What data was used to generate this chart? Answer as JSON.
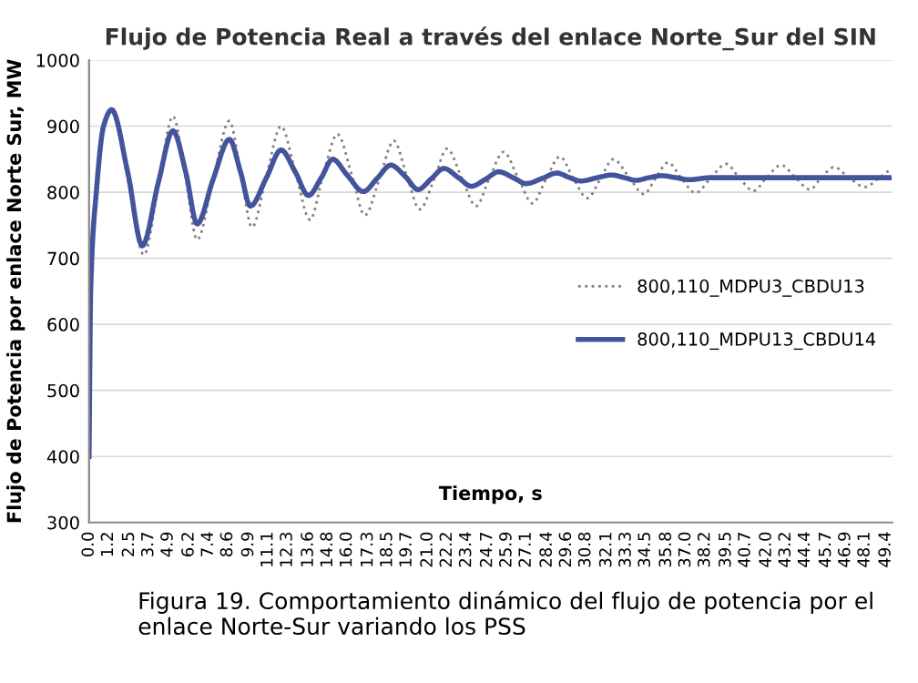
{
  "chart_data": {
    "type": "line",
    "title": "Flujo de Potencia Real a través del enlace Norte_Sur del SIN",
    "xlabel": "Tiempo, s",
    "ylabel": "Flujo de Potencia por enlace Norte Sur, MW",
    "annotations": [
      "Figura 19. Comportamiento dinámico del flujo de potencia por el enlace Norte-Sur variando los PSS"
    ],
    "series": [
      {
        "name": "800,110_MDPU3_CBDU13",
        "color": "#808080",
        "line_style": "dotted",
        "x": [
          0,
          0.1,
          0.45,
          0.9,
          1.4,
          2.4,
          3.4,
          4.3,
          5.2,
          6.0,
          6.7,
          7.7,
          8.7,
          9.4,
          10.1,
          11.0,
          11.9,
          12.8,
          13.7,
          14.5,
          15.4,
          16.3,
          17.1,
          18.0,
          18.9,
          19.7,
          20.5,
          21.4,
          22.2,
          23.1,
          24.0,
          24.8,
          25.7,
          26.6,
          27.5,
          28.3,
          29.2,
          30.0,
          30.9,
          31.7,
          32.5,
          33.5,
          34.4,
          35.1,
          35.9,
          36.7,
          37.6,
          38.5,
          39.5,
          40.3,
          41.2,
          42.0,
          42.9,
          43.8,
          44.7,
          45.4,
          46.2,
          47.1,
          48.1,
          49.0,
          49.6
        ],
        "values": [
          400,
          650,
          800,
          900,
          925,
          820,
          705,
          810,
          915,
          820,
          728,
          820,
          908,
          830,
          747,
          825,
          900,
          830,
          758,
          825,
          888,
          825,
          765,
          820,
          878,
          825,
          774,
          820,
          866,
          822,
          779,
          820,
          861,
          822,
          783,
          818,
          854,
          822,
          791,
          820,
          850,
          822,
          797,
          820,
          845,
          822,
          799,
          820,
          843,
          822,
          802,
          822,
          841,
          822,
          804,
          822,
          838,
          822,
          808,
          822,
          833
        ]
      },
      {
        "name": "800,110_MDPU13_CBDU14",
        "color": "#44549c",
        "line_style": "solid",
        "x": [
          0,
          0.1,
          0.45,
          0.9,
          1.4,
          2.4,
          3.3,
          4.3,
          5.2,
          6.0,
          6.7,
          7.7,
          8.7,
          9.4,
          10.0,
          11.0,
          11.9,
          12.8,
          13.6,
          14.4,
          15.1,
          16.0,
          17.0,
          17.9,
          18.7,
          19.6,
          20.4,
          21.2,
          22.0,
          22.9,
          23.7,
          24.6,
          25.4,
          26.3,
          27.1,
          28.1,
          29.0,
          29.8,
          30.5,
          31.5,
          32.4,
          33.2,
          33.9,
          34.7,
          35.5,
          36.4,
          37.2,
          38.5,
          40,
          42,
          44,
          46,
          48,
          49.6
        ],
        "values": [
          400,
          650,
          800,
          900,
          925,
          830,
          719,
          815,
          893,
          830,
          752,
          820,
          880,
          830,
          779,
          822,
          864,
          830,
          795,
          822,
          850,
          826,
          801,
          822,
          841,
          824,
          804,
          820,
          836,
          822,
          809,
          820,
          831,
          822,
          813,
          821,
          829,
          822,
          817,
          822,
          826,
          822,
          818,
          822,
          825,
          822,
          819,
          822,
          822,
          822,
          822,
          822,
          822,
          822
        ]
      }
    ],
    "xlim": [
      0,
      49.8
    ],
    "ylim": [
      300,
      1000
    ],
    "yticks": [
      300,
      400,
      500,
      600,
      700,
      800,
      900,
      1000
    ],
    "xticks": [
      {
        "value": 0,
        "label": "0.0"
      },
      1.2,
      2.5,
      3.7,
      4.9,
      6.2,
      7.4,
      8.6,
      9.9,
      11.1,
      12.3,
      13.6,
      14.8,
      {
        "value": 16,
        "label": "16.0"
      },
      17.3,
      18.5,
      19.7,
      {
        "value": 21,
        "label": "21.0"
      },
      22.2,
      23.4,
      24.7,
      25.9,
      27.1,
      28.4,
      29.6,
      30.8,
      32.1,
      33.3,
      34.5,
      35.8,
      {
        "value": 37,
        "label": "37.0"
      },
      38.2,
      39.5,
      40.7,
      {
        "value": 42,
        "label": "42.0"
      },
      43.2,
      44.4,
      45.7,
      46.9,
      48.1,
      49.4
    ],
    "grid": "y",
    "legend": "right",
    "marker": "none"
  }
}
